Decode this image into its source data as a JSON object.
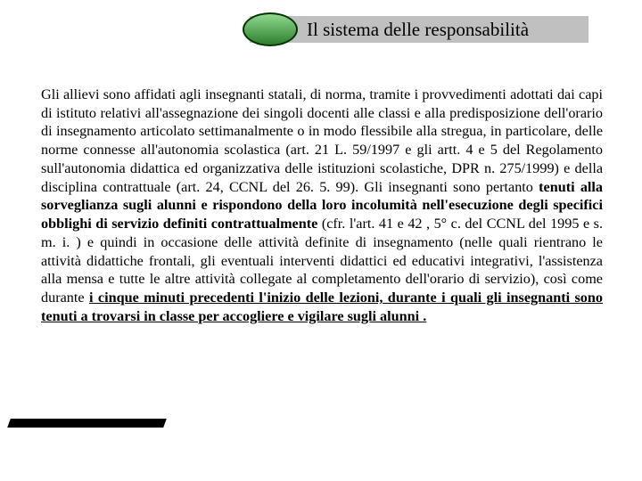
{
  "header": {
    "title": "Il sistema delle responsabilità",
    "bar_color": "#c0c0c0",
    "oval_border": "#003300",
    "oval_fill_top": "#8fd98f",
    "oval_fill_bottom": "#2e7d2e"
  },
  "body": {
    "p1_a": "Gli allievi sono affidati agli insegnanti statali, di norma, tramite i provvedimenti adottati dai capi di istituto relativi all'assegnazione dei singoli docenti alle classi e alla predisposizione dell'orario di insegnamento articolato settimanalmente o in modo flessibile alla stregua, in particolare, delle norme connesse all'autonomia scolastica (art. 21 L. 59/1997 e gli artt. 4 e 5 del Regolamento sull'autonomia didattica ed organizzativa delle istituzioni scolastiche, DPR n. 275/1999) e della disciplina contrattuale (art. 24, CCNL del 26. 5. 99). Gli insegnanti sono pertanto ",
    "p1_b": "tenuti alla sorveglianza sugli alunni e rispondono della loro incolumità nell'esecuzione degli specifici obblighi di servizio definiti contrattualmente",
    "p1_c": " (cfr. l'art. 41 e 42 , 5° c. del CCNL del 1995 e s. m. i. ) e quindi in occasione delle attività definite di insegnamento (nelle quali rientrano le attività didattiche frontali, gli eventuali interventi didattici ed educativi integrativi, l'assistenza alla mensa e tutte le altre attività collegate al completamento dell'orario di servizio), così come durante ",
    "p1_d": "i cinque minuti precedenti l'inizio delle lezioni, durante i quali gli insegnanti sono tenuti a trovarsi in classe per accogliere e vigilare sugli alunni .",
    "font_size": 16.2,
    "text_color": "#000000"
  },
  "decoration": {
    "triangle_dark": "#1a6b6b",
    "triangle_light": "#9fcfcf",
    "shadow_color": "#000000"
  }
}
